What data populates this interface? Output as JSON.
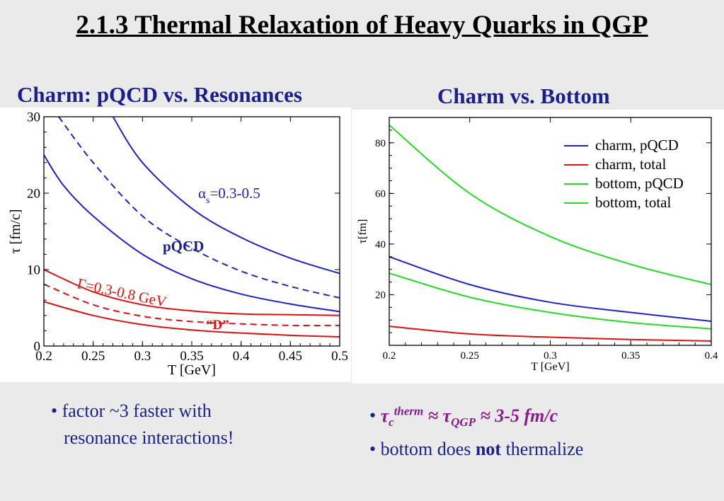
{
  "slide": {
    "title": "2.1.3 Thermal Relaxation of Heavy Quarks in QGP"
  },
  "left_panel": {
    "title": "Charm: pQCD vs. Resonances",
    "annotations": {
      "alpha_symbol": "α",
      "alpha_sub": "s",
      "alpha_range": "=0.3-0.5",
      "pqcd": "pQCD",
      "gamma": "Γ=0.3-0.8 GeV",
      "d_meson": "“D”"
    },
    "bullets": [
      "• factor ~3 faster with",
      "resonance interactions!"
    ]
  },
  "right_panel": {
    "title": "Charm vs. Bottom",
    "bullet1": {
      "bullet": "•",
      "tau": "τ",
      "sub_c": "c",
      "sup": "therm",
      "approx": " ≈ ",
      "sub_qgp": "QGP",
      "tail": " ≈ 3-5 fm/c"
    },
    "bullet2": {
      "prefix": "• bottom does ",
      "bold": "not",
      "suffix": " thermalize"
    }
  },
  "chart_data": [
    {
      "type": "line",
      "xlabel": "T [GeV]",
      "ylabel": "τ [fm/c]",
      "xlim": [
        0.2,
        0.5
      ],
      "ylim": [
        0,
        30
      ],
      "xticks": [
        0.2,
        0.25,
        0.3,
        0.35,
        0.4,
        0.45,
        0.5
      ],
      "yticks": [
        0,
        10,
        20,
        30
      ],
      "xtick_labels": [
        "0.2",
        "0.25",
        "0.3",
        "0.35",
        "0.4",
        "0.45",
        "0.5"
      ],
      "ytick_labels": [
        "0",
        "10",
        "20",
        "30"
      ],
      "grid": false,
      "series": [
        {
          "color": "#1f22c8",
          "dash": false,
          "x": [
            0.2,
            0.22,
            0.25,
            0.3,
            0.35,
            0.4,
            0.45,
            0.5
          ],
          "y": [
            25,
            21,
            17,
            12,
            8.8,
            6.8,
            5.5,
            4.5
          ]
        },
        {
          "color": "#1f22c8",
          "dash": true,
          "x": [
            0.215,
            0.25,
            0.3,
            0.35,
            0.4,
            0.45,
            0.5
          ],
          "y": [
            30,
            24,
            17,
            12.8,
            9.8,
            7.8,
            6.3
          ]
        },
        {
          "color": "#1f22c8",
          "dash": false,
          "x": [
            0.27,
            0.3,
            0.35,
            0.4,
            0.45,
            0.5
          ],
          "y": [
            30,
            24,
            18,
            14.2,
            11.5,
            9.5
          ]
        },
        {
          "color": "#dd1111",
          "dash": false,
          "x": [
            0.2,
            0.25,
            0.3,
            0.35,
            0.4,
            0.45,
            0.5
          ],
          "y": [
            5.8,
            4,
            2.8,
            2.1,
            1.7,
            1.4,
            1.2
          ]
        },
        {
          "color": "#dd1111",
          "dash": true,
          "x": [
            0.2,
            0.25,
            0.3,
            0.35,
            0.4,
            0.45,
            0.5
          ],
          "y": [
            8.1,
            5.4,
            3.9,
            3.2,
            2.9,
            2.7,
            2.7
          ]
        },
        {
          "color": "#dd1111",
          "dash": false,
          "x": [
            0.2,
            0.25,
            0.3,
            0.35,
            0.4,
            0.45,
            0.5
          ],
          "y": [
            10,
            7.1,
            5.4,
            4.6,
            4.2,
            4.1,
            4
          ]
        }
      ]
    },
    {
      "type": "line",
      "xlabel": "T [GeV]",
      "ylabel": "τ[fm]",
      "xlim": [
        0.2,
        0.4
      ],
      "ylim": [
        0,
        90
      ],
      "xticks": [
        0.2,
        0.25,
        0.3,
        0.35,
        0.4
      ],
      "yticks": [
        20,
        40,
        60,
        80
      ],
      "xtick_labels": [
        "0.2",
        "0.25",
        "0.3",
        "0.35",
        "0.4"
      ],
      "ytick_labels": [
        "20",
        "40",
        "60",
        "80"
      ],
      "grid": false,
      "legend_position": "top-right",
      "series": [
        {
          "name": "charm, pQCD",
          "color": "#1f22c8",
          "x": [
            0.2,
            0.25,
            0.3,
            0.35,
            0.4
          ],
          "y": [
            35,
            24,
            17,
            13,
            9.5
          ]
        },
        {
          "name": "charm, total",
          "color": "#dd1111",
          "x": [
            0.2,
            0.25,
            0.3,
            0.35,
            0.4
          ],
          "y": [
            7.5,
            4.5,
            3.2,
            2.3,
            1.7
          ]
        },
        {
          "name": "bottom, pQCD",
          "color": "#22dd22",
          "x": [
            0.2,
            0.25,
            0.3,
            0.35,
            0.4
          ],
          "y": [
            28.5,
            19,
            13,
            9,
            6.5
          ]
        },
        {
          "name": "bottom, total",
          "color": "#22dd22",
          "x": [
            0.2,
            0.25,
            0.3,
            0.35,
            0.4
          ],
          "y": [
            87,
            60,
            43,
            32,
            24
          ]
        }
      ]
    }
  ]
}
